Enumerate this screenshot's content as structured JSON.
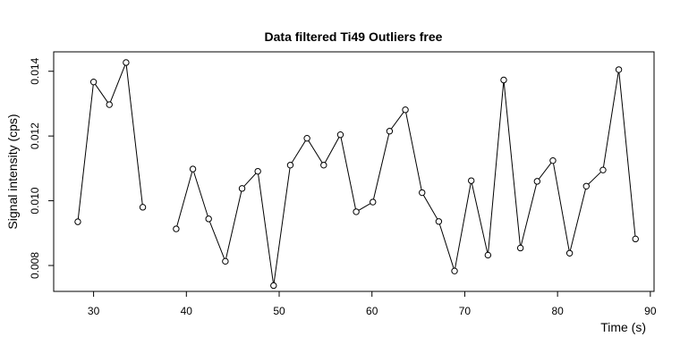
{
  "chart_data": {
    "type": "line",
    "title": "Data filtered Ti49 Outliers free",
    "xlabel": "Time (s)",
    "ylabel": "Signal intensity (cps)",
    "xlim": [
      25.7,
      90.4
    ],
    "ylim": [
      0.0072,
      0.0146
    ],
    "x_ticks": [
      30,
      40,
      50,
      60,
      70,
      80,
      90
    ],
    "y_ticks": [
      0.008,
      0.01,
      0.012,
      0.014
    ],
    "x_tick_labels": [
      "30",
      "40",
      "50",
      "60",
      "70",
      "80",
      "90"
    ],
    "y_tick_labels": [
      "0.008",
      "0.010",
      "0.012",
      "0.014"
    ],
    "grid": false,
    "series": [
      {
        "segments": [
          [
            [
              28.3,
              0.00935
            ],
            [
              30.0,
              0.01367
            ],
            [
              31.7,
              0.01297
            ],
            [
              33.5,
              0.01427
            ],
            [
              35.3,
              0.0098
            ]
          ],
          [
            [
              38.9,
              0.00913
            ],
            [
              40.7,
              0.01098
            ],
            [
              42.4,
              0.00944
            ],
            [
              44.2,
              0.00813
            ],
            [
              46.0,
              0.01038
            ],
            [
              47.7,
              0.01091
            ],
            [
              49.4,
              0.00738
            ],
            [
              51.2,
              0.0111
            ],
            [
              53.0,
              0.01193
            ],
            [
              54.8,
              0.0111
            ],
            [
              56.6,
              0.01204
            ],
            [
              58.3,
              0.00966
            ],
            [
              60.1,
              0.00996
            ],
            [
              61.9,
              0.01215
            ],
            [
              63.6,
              0.01281
            ],
            [
              65.4,
              0.01025
            ],
            [
              67.2,
              0.00936
            ],
            [
              68.9,
              0.00783
            ],
            [
              70.7,
              0.01062
            ],
            [
              72.5,
              0.00832
            ],
            [
              74.2,
              0.01373
            ],
            [
              76.0,
              0.00854
            ],
            [
              77.8,
              0.0106
            ],
            [
              79.5,
              0.01124
            ],
            [
              81.3,
              0.00838
            ],
            [
              83.1,
              0.01045
            ],
            [
              84.9,
              0.01095
            ],
            [
              86.6,
              0.01405
            ],
            [
              88.4,
              0.00882
            ]
          ]
        ]
      }
    ]
  }
}
